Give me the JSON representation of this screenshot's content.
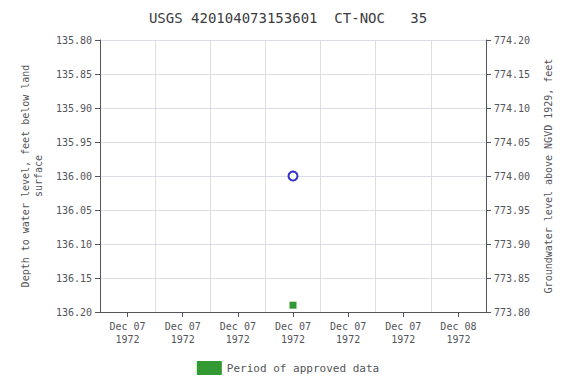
{
  "chart_data": {
    "type": "scatter",
    "title": "USGS 420104073153601  CT-NOC   35",
    "y_label": "Depth to water level, feet below land\nsurface",
    "y2_label": "Groundwater level above NGVD 1929, feet",
    "categories": [
      "Dec 07\n1972",
      "Dec 07\n1972",
      "Dec 07\n1972",
      "Dec 07\n1972",
      "Dec 07\n1972",
      "Dec 07\n1972",
      "Dec 08\n1972"
    ],
    "series": [
      {
        "color": "#0000bb",
        "marker": "open_circle",
        "values": [
          null,
          null,
          null,
          136.0,
          null,
          null,
          null
        ]
      },
      {
        "name": "Period of approved data",
        "color": "#008000",
        "marker": "square",
        "values": [
          null,
          null,
          null,
          136.19,
          null,
          null,
          null
        ]
      }
    ],
    "ylim": [
      136.2,
      135.8
    ],
    "yticks": [
      {
        "value": 135.8,
        "label": "135.80"
      },
      {
        "value": 135.85,
        "label": "135.85"
      },
      {
        "value": 135.9,
        "label": "135.90"
      },
      {
        "value": 135.95,
        "label": "135.95"
      },
      {
        "value": 136.0,
        "label": "136.00"
      },
      {
        "value": 136.05,
        "label": "136.05"
      },
      {
        "value": 136.1,
        "label": "136.10"
      },
      {
        "value": 136.15,
        "label": "136.15"
      },
      {
        "value": 136.2,
        "label": "136.20"
      }
    ],
    "y2lim": [
      773.8,
      774.2
    ],
    "y2ticks": [
      {
        "value": 774.2,
        "label": "774.20"
      },
      {
        "value": 774.15,
        "label": "774.15"
      },
      {
        "value": 774.1,
        "label": "774.10"
      },
      {
        "value": 774.05,
        "label": "774.05"
      },
      {
        "value": 774.0,
        "label": "774.00"
      },
      {
        "value": 773.95,
        "label": "773.95"
      },
      {
        "value": 773.9,
        "label": "773.90"
      },
      {
        "value": 773.85,
        "label": "773.85"
      },
      {
        "value": 773.8,
        "label": "773.80"
      }
    ],
    "grid": true,
    "legend": "bottom"
  }
}
